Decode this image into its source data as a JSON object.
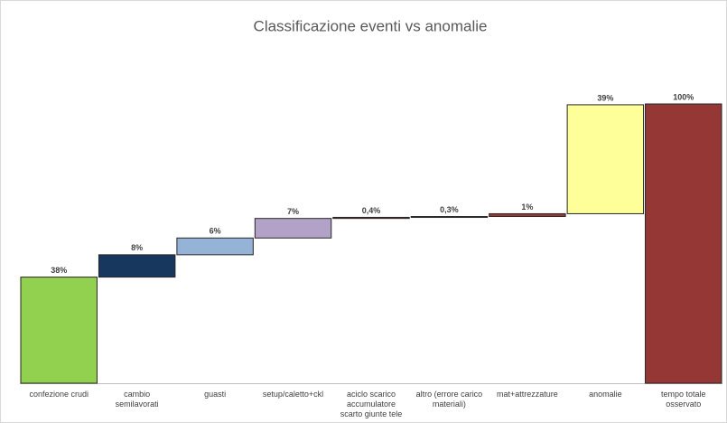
{
  "chart_data": {
    "type": "waterfall",
    "title": "Classificazione eventi vs anomalie",
    "categories": [
      "confezione crudi",
      "cambio semilavorati",
      "guasti",
      "setup/caletto+ckl",
      "aciclo scarico accumulatore scarto giunte tele",
      "altro (errore carico materiali)",
      "mat+attrezzature",
      "anomalie",
      "tempo totale osservato"
    ],
    "values": [
      38,
      8,
      6,
      7,
      0.4,
      0.3,
      1,
      39,
      100
    ],
    "value_labels": [
      "38%",
      "8%",
      "6%",
      "7%",
      "0,4%",
      "0,3%",
      "1%",
      "39%",
      "100%"
    ],
    "colors": [
      "#92d050",
      "#17375e",
      "#95b3d7",
      "#b3a2c7",
      "#953735",
      "#404040",
      "#953735",
      "#ffff99",
      "#953735"
    ]
  }
}
